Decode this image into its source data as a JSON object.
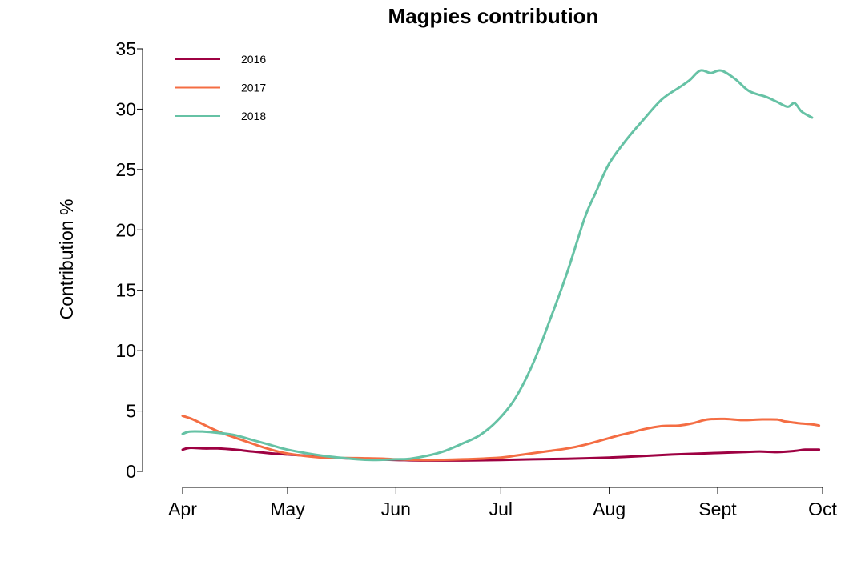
{
  "chart_data": {
    "type": "line",
    "title": "Magpies contribution",
    "xlabel": "",
    "ylabel": "Contribution %",
    "x_ticks": [
      {
        "label": "Apr",
        "day": 0
      },
      {
        "label": "May",
        "day": 30
      },
      {
        "label": "Jun",
        "day": 61
      },
      {
        "label": "Jul",
        "day": 91
      },
      {
        "label": "Aug",
        "day": 122
      },
      {
        "label": "Sept",
        "day": 153
      },
      {
        "label": "Oct",
        "day": 183
      }
    ],
    "xlim": [
      0,
      183
    ],
    "ylim": [
      0,
      35
    ],
    "y_ticks": [
      0,
      5,
      10,
      15,
      20,
      25,
      30,
      35
    ],
    "grid": false,
    "legend_position": "top-left",
    "series": [
      {
        "name": "2016",
        "color": "#9E0142",
        "points": [
          [
            0,
            1.8
          ],
          [
            2,
            1.95
          ],
          [
            6,
            1.9
          ],
          [
            10,
            1.9
          ],
          [
            15,
            1.8
          ],
          [
            20,
            1.65
          ],
          [
            25,
            1.5
          ],
          [
            30,
            1.4
          ],
          [
            38,
            1.25
          ],
          [
            45,
            1.1
          ],
          [
            55,
            1.0
          ],
          [
            61,
            0.95
          ],
          [
            70,
            0.9
          ],
          [
            80,
            0.9
          ],
          [
            91,
            0.95
          ],
          [
            100,
            1.0
          ],
          [
            110,
            1.05
          ],
          [
            122,
            1.15
          ],
          [
            130,
            1.25
          ],
          [
            140,
            1.4
          ],
          [
            150,
            1.5
          ],
          [
            160,
            1.6
          ],
          [
            165,
            1.65
          ],
          [
            170,
            1.6
          ],
          [
            175,
            1.7
          ],
          [
            178,
            1.8
          ],
          [
            182,
            1.8
          ]
        ]
      },
      {
        "name": "2017",
        "color": "#F46D43",
        "points": [
          [
            0,
            4.6
          ],
          [
            3,
            4.3
          ],
          [
            8,
            3.6
          ],
          [
            12,
            3.1
          ],
          [
            18,
            2.5
          ],
          [
            23,
            2.0
          ],
          [
            28,
            1.6
          ],
          [
            33,
            1.35
          ],
          [
            40,
            1.15
          ],
          [
            50,
            1.1
          ],
          [
            58,
            1.05
          ],
          [
            61,
            1.0
          ],
          [
            70,
            0.95
          ],
          [
            80,
            1.0
          ],
          [
            91,
            1.15
          ],
          [
            95,
            1.3
          ],
          [
            100,
            1.5
          ],
          [
            105,
            1.7
          ],
          [
            110,
            1.9
          ],
          [
            115,
            2.2
          ],
          [
            120,
            2.6
          ],
          [
            125,
            3.0
          ],
          [
            128,
            3.2
          ],
          [
            132,
            3.5
          ],
          [
            137,
            3.75
          ],
          [
            142,
            3.8
          ],
          [
            146,
            4.0
          ],
          [
            150,
            4.3
          ],
          [
            155,
            4.35
          ],
          [
            160,
            4.25
          ],
          [
            165,
            4.3
          ],
          [
            170,
            4.3
          ],
          [
            172,
            4.15
          ],
          [
            176,
            4.0
          ],
          [
            180,
            3.9
          ],
          [
            182,
            3.8
          ]
        ]
      },
      {
        "name": "2018",
        "color": "#66C2A5",
        "points": [
          [
            0,
            3.1
          ],
          [
            2,
            3.3
          ],
          [
            6,
            3.3
          ],
          [
            10,
            3.2
          ],
          [
            15,
            3.0
          ],
          [
            20,
            2.6
          ],
          [
            25,
            2.2
          ],
          [
            30,
            1.8
          ],
          [
            40,
            1.3
          ],
          [
            50,
            1.0
          ],
          [
            55,
            0.95
          ],
          [
            61,
            1.0
          ],
          [
            65,
            1.05
          ],
          [
            70,
            1.3
          ],
          [
            75,
            1.7
          ],
          [
            80,
            2.3
          ],
          [
            85,
            3.0
          ],
          [
            90,
            4.2
          ],
          [
            95,
            6.0
          ],
          [
            100,
            8.8
          ],
          [
            105,
            12.5
          ],
          [
            110,
            16.5
          ],
          [
            115,
            21.0
          ],
          [
            118,
            23.0
          ],
          [
            122,
            25.5
          ],
          [
            127,
            27.5
          ],
          [
            132,
            29.2
          ],
          [
            137,
            30.8
          ],
          [
            142,
            31.8
          ],
          [
            145,
            32.4
          ],
          [
            148,
            33.2
          ],
          [
            151,
            33.0
          ],
          [
            154,
            33.2
          ],
          [
            158,
            32.5
          ],
          [
            162,
            31.5
          ],
          [
            167,
            31.0
          ],
          [
            170,
            30.6
          ],
          [
            173,
            30.2
          ],
          [
            175,
            30.5
          ],
          [
            177,
            29.8
          ],
          [
            180,
            29.3
          ]
        ]
      }
    ]
  }
}
